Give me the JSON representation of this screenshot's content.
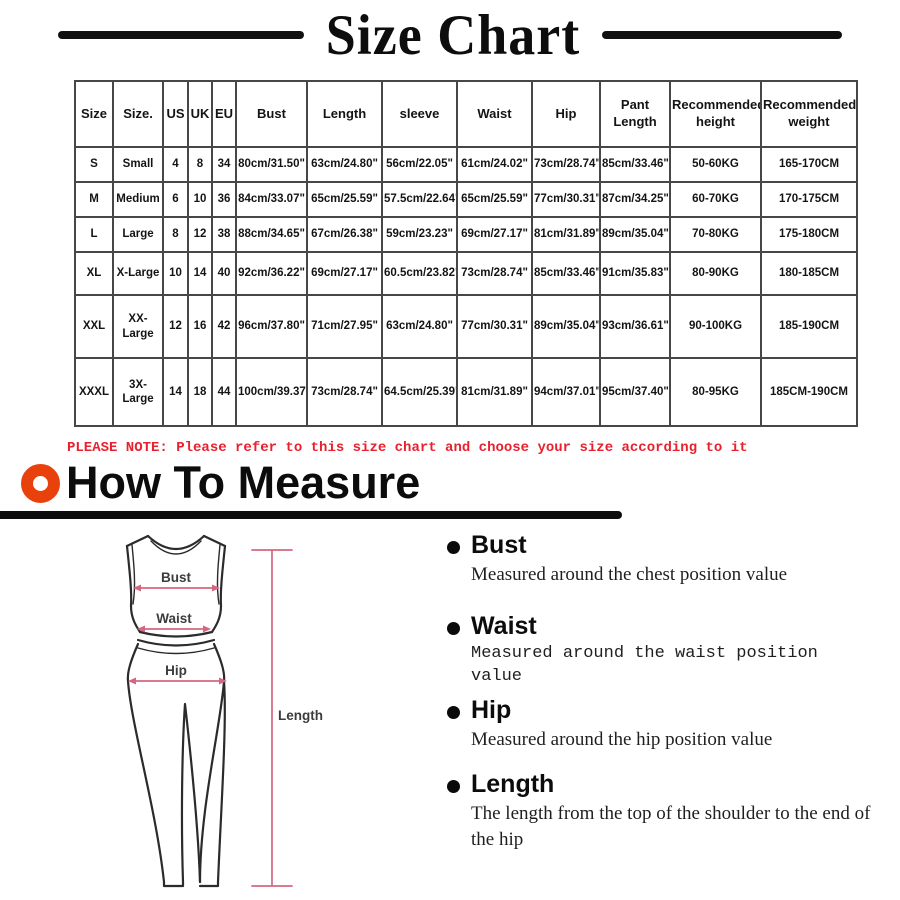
{
  "header": {
    "title": "Size Chart"
  },
  "table": {
    "columns": [
      "Size",
      "Size.",
      "US",
      "UK",
      "EU",
      "Bust",
      "Length",
      "sleeve",
      "Waist",
      "Hip",
      "Pant Length",
      "Recommended height",
      "Recommended weight"
    ],
    "rows": [
      [
        "S",
        "Small",
        "4",
        "8",
        "34",
        "80cm/31.50\"",
        "63cm/24.80\"",
        "56cm/22.05\"",
        "61cm/24.02\"",
        "73cm/28.74\"",
        "85cm/33.46\"",
        "50-60KG",
        "165-170CM"
      ],
      [
        "M",
        "Medium",
        "6",
        "10",
        "36",
        "84cm/33.07\"",
        "65cm/25.59\"",
        "57.5cm/22.64\"",
        "65cm/25.59\"",
        "77cm/30.31\"",
        "87cm/34.25\"",
        "60-70KG",
        "170-175CM"
      ],
      [
        "L",
        "Large",
        "8",
        "12",
        "38",
        "88cm/34.65\"",
        "67cm/26.38\"",
        "59cm/23.23\"",
        "69cm/27.17\"",
        "81cm/31.89\"",
        "89cm/35.04\"",
        "70-80KG",
        "175-180CM"
      ],
      [
        "XL",
        "X-Large",
        "10",
        "14",
        "40",
        "92cm/36.22\"",
        "69cm/27.17\"",
        "60.5cm/23.82\"",
        "73cm/28.74\"",
        "85cm/33.46\"",
        "91cm/35.83\"",
        "80-90KG",
        "180-185CM"
      ],
      [
        "XXL",
        "XX-Large",
        "12",
        "16",
        "42",
        "96cm/37.80\"",
        "71cm/27.95\"",
        "63cm/24.80\"",
        "77cm/30.31\"",
        "89cm/35.04\"",
        "93cm/36.61\"",
        "90-100KG",
        "185-190CM"
      ],
      [
        "XXXL",
        "3X-Large",
        "14",
        "18",
        "44",
        "100cm/39.37\"",
        "73cm/28.74\"",
        "64.5cm/25.39\"",
        "81cm/31.89\"",
        "94cm/37.01\"",
        "95cm/37.40\"",
        "80-95KG",
        "185CM-190CM"
      ]
    ]
  },
  "note": {
    "text": "PLEASE NOTE: Please refer to this size chart and choose your size according to it"
  },
  "measure": {
    "heading": "How To Measure",
    "items": [
      {
        "title": "Bust",
        "desc": "Measured around the chest position value"
      },
      {
        "title": "Waist",
        "desc": "Measured around the waist position value"
      },
      {
        "title": "Hip",
        "desc": "Measured around the  hip position value"
      },
      {
        "title": "Length",
        "desc": "The length from the top of the shoulder to the end of the hip"
      }
    ]
  },
  "figure": {
    "bust_label": "Bust",
    "waist_label": "Waist",
    "hip_label": "Hip",
    "length_label": "Length"
  },
  "colors": {
    "note_red": "#e8212f",
    "accent_orange": "#e8410c",
    "arrow_pink": "#d4677f"
  }
}
